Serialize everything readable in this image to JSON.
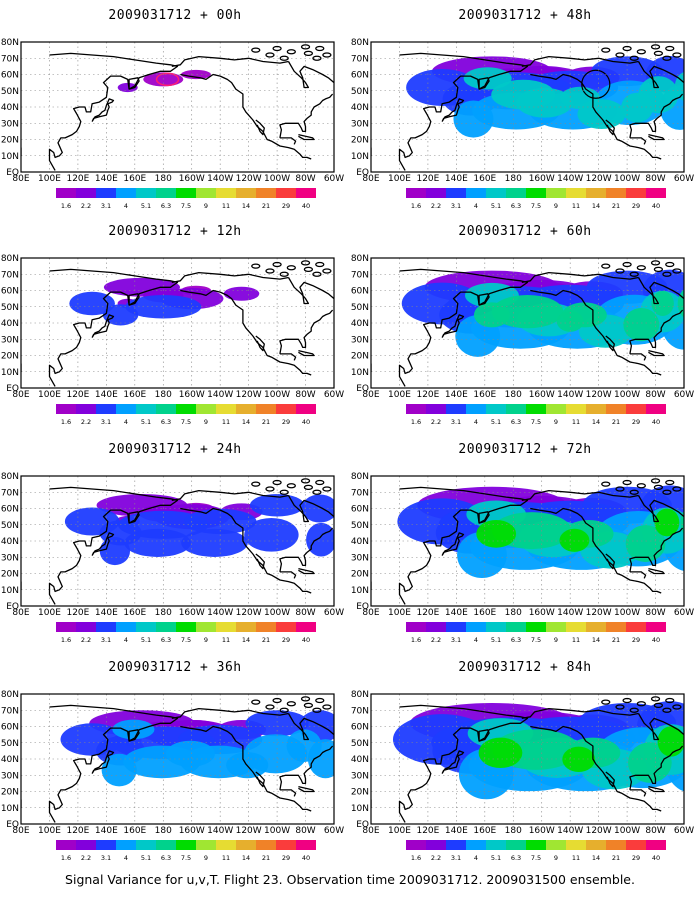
{
  "chart_data": {
    "type": "heatmap",
    "x_axis_ticks": [
      "80E",
      "100E",
      "120E",
      "140E",
      "160E",
      "180",
      "160W",
      "140W",
      "120W",
      "100W",
      "80W",
      "60W"
    ],
    "y_axis_ticks": [
      "EQ",
      "10N",
      "20N",
      "30N",
      "40N",
      "50N",
      "60N",
      "70N",
      "80N"
    ],
    "colorbar": {
      "values": [
        "1.6",
        "2.2",
        "3.1",
        "4",
        "5.1",
        "6.3",
        "7.5",
        "9",
        "11",
        "14",
        "21",
        "29",
        "40"
      ],
      "colors": [
        "#a000c8",
        "#8200dc",
        "#1e3cff",
        "#00a0ff",
        "#00c8c8",
        "#00d28c",
        "#00dc00",
        "#a0e632",
        "#e6dc32",
        "#e6af2d",
        "#f08228",
        "#fa3c3c",
        "#f00082"
      ]
    },
    "panels": [
      {
        "title": "2009031712 + 00h",
        "lead_hours": 0,
        "max_level": 1
      },
      {
        "title": "2009031712 + 48h",
        "lead_hours": 48,
        "max_level": 4
      },
      {
        "title": "2009031712 + 12h",
        "lead_hours": 12,
        "max_level": 2
      },
      {
        "title": "2009031712 + 60h",
        "lead_hours": 60,
        "max_level": 5
      },
      {
        "title": "2009031712 + 24h",
        "lead_hours": 24,
        "max_level": 2
      },
      {
        "title": "2009031712 + 72h",
        "lead_hours": 72,
        "max_level": 6
      },
      {
        "title": "2009031712 + 36h",
        "lead_hours": 36,
        "max_level": 3
      },
      {
        "title": "2009031712 + 84h",
        "lead_hours": 84,
        "max_level": 7
      }
    ]
  },
  "caption": "Signal Variance for u,v,T. Flight 23. Observation time 2009031712. 2009031500 ensemble."
}
